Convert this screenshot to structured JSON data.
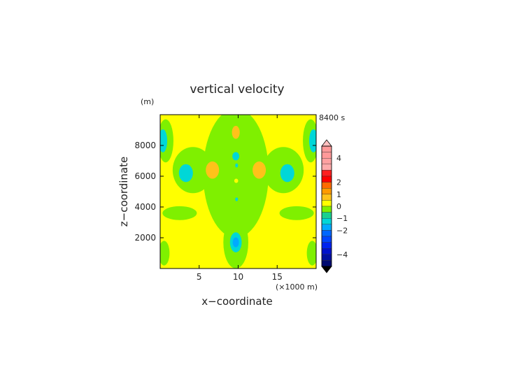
{
  "chart_data": {
    "type": "heatmap",
    "title": "vertical velocity",
    "xlabel": "x−coordinate",
    "ylabel": "z−coordinate",
    "y_unit": "(m)",
    "x_unit": "(×1000 m)",
    "time_label": "8400 s",
    "xlim": [
      0,
      20
    ],
    "ylim": [
      0,
      10000
    ],
    "x_ticks": [
      5,
      10,
      15
    ],
    "x_tick_labels": [
      "5",
      "10",
      "15"
    ],
    "y_ticks": [
      2000,
      4000,
      6000,
      8000
    ],
    "y_tick_labels": [
      "2000",
      "4000",
      "6000",
      "8000"
    ],
    "background_color": "#ffff00",
    "colorbar": {
      "labels": [
        "4",
        "2",
        "1",
        "0",
        "−1",
        "−2",
        "−4"
      ],
      "label_values": [
        4,
        2,
        1,
        0,
        -1,
        -2,
        -4
      ],
      "bins": [
        {
          "lo": 4.5,
          "hi": 5.0,
          "color": "#ff9999"
        },
        {
          "lo": 4.0,
          "hi": 4.5,
          "color": "#ff9999"
        },
        {
          "lo": 3.5,
          "hi": 4.0,
          "color": "#ffa0a0"
        },
        {
          "lo": 3.0,
          "hi": 3.5,
          "color": "#ffaaaa"
        },
        {
          "lo": 2.5,
          "hi": 3.0,
          "color": "#ff2020"
        },
        {
          "lo": 2.0,
          "hi": 2.5,
          "color": "#ff0000"
        },
        {
          "lo": 1.5,
          "hi": 2.0,
          "color": "#ff6a00"
        },
        {
          "lo": 1.0,
          "hi": 1.5,
          "color": "#ff9a00"
        },
        {
          "lo": 0.5,
          "hi": 1.0,
          "color": "#ffc21a"
        },
        {
          "lo": 0.0,
          "hi": 0.5,
          "color": "#ffff00"
        },
        {
          "lo": -0.5,
          "hi": 0.0,
          "color": "#7ff000"
        },
        {
          "lo": -1.0,
          "hi": -0.5,
          "color": "#1ad08f"
        },
        {
          "lo": -1.5,
          "hi": -1.0,
          "color": "#00d7d7"
        },
        {
          "lo": -2.0,
          "hi": -1.5,
          "color": "#00aaff"
        },
        {
          "lo": -2.5,
          "hi": -2.0,
          "color": "#0066ff"
        },
        {
          "lo": -3.0,
          "hi": -2.5,
          "color": "#0044ff"
        },
        {
          "lo": -3.5,
          "hi": -3.0,
          "color": "#0022ee"
        },
        {
          "lo": -4.0,
          "hi": -3.5,
          "color": "#0011cc"
        },
        {
          "lo": -4.5,
          "hi": -4.0,
          "color": "#000fa0"
        },
        {
          "lo": -5.0,
          "hi": -4.5,
          "color": "#000a70"
        }
      ],
      "upper_overflow_color": "#ffc0c0",
      "lower_overflow_color": "#000000"
    },
    "features": [
      {
        "cx": 9.7,
        "cz": 6200,
        "rx": 4.2,
        "rz": 4200,
        "value": -0.3
      },
      {
        "cx": 9.7,
        "cz": 8700,
        "rx": 2.8,
        "rz": 1100,
        "value": -0.3
      },
      {
        "cx": 9.7,
        "cz": 1700,
        "rx": 1.6,
        "rz": 1700,
        "value": -0.3
      },
      {
        "cx": 9.7,
        "cz": 2400,
        "rx": 0.8,
        "rz": 600,
        "value": -0.3
      },
      {
        "cx": 4.2,
        "cz": 6400,
        "rx": 2.6,
        "rz": 1500,
        "value": -0.3
      },
      {
        "cx": 15.8,
        "cz": 6400,
        "rx": 2.6,
        "rz": 1500,
        "value": -0.3
      },
      {
        "cx": 2.5,
        "cz": 3600,
        "rx": 2.2,
        "rz": 450,
        "value": -0.3
      },
      {
        "cx": 17.5,
        "cz": 3600,
        "rx": 2.2,
        "rz": 450,
        "value": -0.3
      },
      {
        "cx": 0.7,
        "cz": 8300,
        "rx": 1.0,
        "rz": 1400,
        "value": -0.3
      },
      {
        "cx": 19.3,
        "cz": 8300,
        "rx": 1.0,
        "rz": 1400,
        "value": -0.3
      },
      {
        "cx": 0.5,
        "cz": 1000,
        "rx": 0.7,
        "rz": 800,
        "value": -0.3
      },
      {
        "cx": 19.5,
        "cz": 1000,
        "rx": 0.7,
        "rz": 800,
        "value": -0.3
      },
      {
        "cx": 9.7,
        "cz": 1700,
        "rx": 0.75,
        "rz": 650,
        "value": -1.2
      },
      {
        "cx": 9.7,
        "cz": 1700,
        "rx": 0.4,
        "rz": 320,
        "value": -1.7
      },
      {
        "cx": 3.3,
        "cz": 6200,
        "rx": 0.9,
        "rz": 580,
        "value": -1.2
      },
      {
        "cx": 16.3,
        "cz": 6200,
        "rx": 0.9,
        "rz": 580,
        "value": -1.2
      },
      {
        "cx": 0.35,
        "cz": 8300,
        "rx": 0.55,
        "rz": 750,
        "value": -1.2
      },
      {
        "cx": 19.65,
        "cz": 8300,
        "rx": 0.55,
        "rz": 750,
        "value": -1.2
      },
      {
        "cx": 9.7,
        "cz": 7300,
        "rx": 0.45,
        "rz": 270,
        "value": -1.2
      },
      {
        "cx": 9.8,
        "cz": 6700,
        "rx": 0.18,
        "rz": 130,
        "value": -1.2
      },
      {
        "cx": 9.8,
        "cz": 4500,
        "rx": 0.18,
        "rz": 120,
        "value": -1.2
      },
      {
        "cx": 6.7,
        "cz": 6400,
        "rx": 0.85,
        "rz": 560,
        "value": 0.7
      },
      {
        "cx": 12.7,
        "cz": 6400,
        "rx": 0.85,
        "rz": 560,
        "value": 0.7
      },
      {
        "cx": 9.7,
        "cz": 8850,
        "rx": 0.5,
        "rz": 420,
        "value": 0.7
      },
      {
        "cx": 9.75,
        "cz": 5700,
        "rx": 0.25,
        "rz": 140,
        "value": 0.2
      }
    ]
  }
}
